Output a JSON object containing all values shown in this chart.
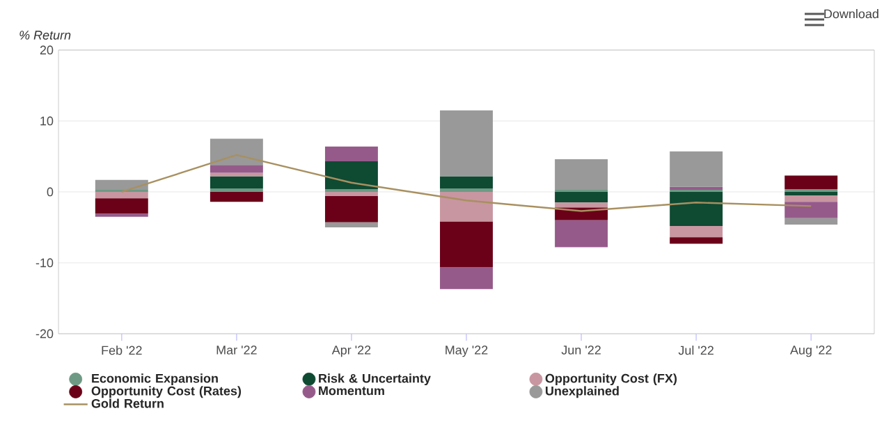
{
  "chart_data": {
    "type": "bar",
    "stacked": true,
    "ylabel": "% Return",
    "categories": [
      "Feb '22",
      "Mar '22",
      "Apr '22",
      "May '22",
      "Jun '22",
      "Jul '22",
      "Aug '22"
    ],
    "series": [
      {
        "name": "Economic Expansion",
        "color": "#6e9a85",
        "values": [
          0.3,
          0.5,
          0.4,
          0.5,
          0.3,
          0.3,
          0.4
        ]
      },
      {
        "name": "Risk & Uncertainty",
        "color": "#0f4a33",
        "values": [
          0,
          1.7,
          3.9,
          1.7,
          -1.5,
          -4.8,
          -0.5
        ]
      },
      {
        "name": "Opportunity Cost (FX)",
        "color": "#c896a0",
        "values": [
          -0.9,
          0.5,
          -0.6,
          -4.2,
          -0.7,
          -1.6,
          -0.9
        ]
      },
      {
        "name": "Opportunity Cost (Rates)",
        "color": "#6b0019",
        "values": [
          -2.2,
          -1.4,
          -3.7,
          -6.4,
          -1.8,
          -0.9,
          1.9
        ]
      },
      {
        "name": "Momentum",
        "color": "#955a8a",
        "values": [
          -0.4,
          1.1,
          2.1,
          -3.1,
          -3.8,
          0.4,
          -2.3
        ]
      },
      {
        "name": "Unexplained",
        "color": "#999999",
        "values": [
          1.4,
          3.7,
          -0.7,
          9.3,
          4.3,
          5.0,
          -0.9
        ]
      },
      {
        "name": "Gold Return",
        "type": "line",
        "color": "#a89060",
        "values": [
          0.0,
          5.2,
          1.3,
          -1.2,
          -2.7,
          -1.5,
          -2.0
        ]
      }
    ],
    "ylim": [
      -20,
      20
    ],
    "yticks": [
      -20,
      -10,
      0,
      10,
      20
    ],
    "grid": "y",
    "legend": "bottom",
    "marker": "none",
    "annotations": [
      "Download"
    ]
  }
}
